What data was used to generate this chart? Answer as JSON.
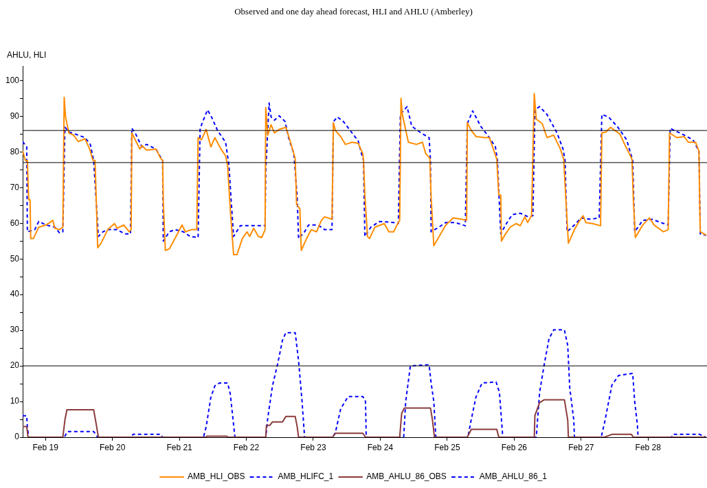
{
  "chart_data": {
    "type": "line",
    "title": "Observed and one day ahead forecast, HLI and AHLU (Amberley)",
    "ylabel": "AHLU, HLI",
    "xlim": [
      "--02-18T15:50",
      "--02-28T21:07"
    ],
    "xticks": [
      {
        "value": "--02-19",
        "label": "Feb 19"
      },
      {
        "value": "--02-20",
        "label": "Feb 20"
      },
      {
        "value": "--02-21",
        "label": "Feb 21"
      },
      {
        "value": "--02-22",
        "label": "Feb 22"
      },
      {
        "value": "--02-23",
        "label": "Feb 23"
      },
      {
        "value": "--02-24",
        "label": "Feb 24"
      },
      {
        "value": "--02-25",
        "label": "Feb 25"
      },
      {
        "value": "--02-26",
        "label": "Feb 26"
      },
      {
        "value": "--02-27",
        "label": "Feb 27"
      },
      {
        "value": "--02-28",
        "label": "Feb 28"
      }
    ],
    "ylim": [
      0,
      104
    ],
    "yticks": [
      0,
      {
        "value": 5,
        "label": null
      },
      10,
      {
        "value": 15,
        "label": null
      },
      20,
      {
        "value": 25,
        "label": null
      },
      30,
      {
        "value": 35,
        "label": null
      },
      40,
      {
        "value": 45,
        "label": null
      },
      50,
      {
        "value": 55,
        "label": null
      },
      60,
      {
        "value": 65,
        "label": null
      },
      70,
      {
        "value": 75,
        "label": null
      },
      80,
      {
        "value": 85,
        "label": null
      },
      90,
      {
        "value": 95,
        "label": null
      },
      100
    ],
    "grid": false,
    "legend": "bottom",
    "ref_lines": [
      {
        "axis": "y",
        "value": 86,
        "color": "#000000"
      },
      {
        "axis": "y",
        "value": 77,
        "color": "#000000"
      },
      {
        "axis": "y",
        "value": 20,
        "color": "#000000"
      }
    ],
    "series": [
      {
        "name": "AMB_HLI_OBS",
        "color": "#ff8c00",
        "line_style": "solid",
        "x": [
          "--02-18T15:50",
          "--02-18T16:48",
          "--02-18T17:31",
          "--02-18T17:46",
          "--02-18T18:00",
          "--02-18T18:29",
          "--02-18T18:43",
          "--02-18T19:41",
          "--02-18T21:36",
          "--02-19T00:14",
          "--02-19T02:38",
          "--02-19T03:22",
          "--02-19T05:02",
          "--02-19T06:14",
          "--02-19T06:43",
          "--02-19T07:12",
          "--02-19T08:24",
          "--02-19T10:05",
          "--02-19T11:46",
          "--02-19T14:10",
          "--02-19T15:50",
          "--02-19T17:02",
          "--02-19T17:46",
          "--02-19T18:14",
          "--02-19T18:43",
          "--02-19T19:55",
          "--02-19T22:19",
          "--02-20T00:43",
          "--02-20T01:41",
          "--02-20T04:05",
          "--02-20T06:00",
          "--02-20T06:43",
          "--02-20T06:58",
          "--02-20T08:10",
          "--02-20T09:50",
          "--02-20T10:34",
          "--02-20T12:14",
          "--02-20T15:36",
          "--02-20T17:17",
          "--02-20T18:00",
          "--02-20T18:14",
          "--02-20T18:58",
          "--02-20T20:24",
          "--02-20T22:48",
          "--02-21T00:58",
          "--02-21T02:10",
          "--02-21T04:19",
          "--02-21T06:14",
          "--02-21T06:43",
          "--02-21T07:55",
          "--02-21T09:36",
          "--02-21T11:17",
          "--02-21T12:43",
          "--02-21T14:53",
          "--02-21T16:34",
          "--02-21T17:17",
          "--02-21T18:14",
          "--02-21T19:26",
          "--02-21T20:38",
          "--02-21T22:34",
          "--02-22T00:14",
          "--02-22T01:12",
          "--02-22T02:38",
          "--02-22T04:19",
          "--02-22T05:31",
          "--02-22T06:43",
          "--02-22T06:58",
          "--02-22T07:41",
          "--02-22T08:53",
          "--02-22T10:05",
          "--02-22T11:46",
          "--02-22T14:10",
          "--02-22T15:50",
          "--02-22T17:31",
          "--02-22T18:00",
          "--02-22T19:12",
          "--02-22T19:41",
          "--02-22T21:36",
          "--02-22T23:17",
          "--02-23T01:12",
          "--02-23T02:53",
          "--02-23T04:05",
          "--02-23T06:43",
          "--02-23T07:12",
          "--02-23T07:55",
          "--02-23T09:50",
          "--02-23T11:31",
          "--02-23T13:55",
          "--02-23T16:05",
          "--02-23T17:46",
          "--02-23T18:00",
          "--02-23T18:29",
          "--02-23T19:26",
          "--02-23T20:10",
          "--02-23T22:05",
          "--02-24T01:26",
          "--02-24T03:07",
          "--02-24T04:48",
          "--02-24T06:29",
          "--02-24T06:58",
          "--02-24T07:26",
          "--02-24T07:55",
          "--02-24T10:05",
          "--02-24T12:58",
          "--02-24T15:07",
          "--02-24T16:19",
          "--02-24T17:46",
          "--02-24T18:14",
          "--02-24T19:12",
          "--02-24T21:07",
          "--02-24T23:31",
          "--02-25T02:10",
          "--02-25T05:17",
          "--02-25T06:58",
          "--02-25T07:12",
          "--02-25T08:38",
          "--02-25T10:19",
          "--02-25T13:26",
          "--02-25T15:07",
          "--02-25T16:48",
          "--02-25T17:46",
          "--02-25T18:29",
          "--02-25T19:12",
          "--02-25T19:26",
          "--02-25T20:53",
          "--02-25T22:34",
          "--02-26T00:43",
          "--02-26T02:10",
          "--02-26T03:50",
          "--02-26T04:48",
          "--02-26T06:14",
          "--02-26T07:12",
          "--02-26T07:55",
          "--02-26T10:05",
          "--02-26T11:46",
          "--02-26T14:10",
          "--02-26T16:34",
          "--02-26T17:46",
          "--02-26T18:29",
          "--02-26T19:26",
          "--02-26T21:36",
          "--02-26T23:02",
          "--02-27T00:43",
          "--02-27T01:41",
          "--02-27T04:05",
          "--02-27T06:58",
          "--02-27T07:26",
          "--02-27T08:53",
          "--02-27T10:34",
          "--02-27T13:55",
          "--02-27T15:36",
          "--02-27T17:17",
          "--02-27T18:14",
          "--02-27T18:43",
          "--02-27T19:26",
          "--02-27T22:05",
          "--02-28T00:29",
          "--02-28T02:10",
          "--02-28T05:31",
          "--02-28T07:12",
          "--02-28T07:41",
          "--02-28T10:19",
          "--02-28T12:58",
          "--02-28T14:24",
          "--02-28T17:02",
          "--02-28T18:14",
          "--02-28T18:29",
          "--02-28T18:43",
          "--02-28T20:53"
        ],
        "values": [
          80.3,
          77.6,
          77.6,
          71.5,
          66.6,
          66.6,
          55.7,
          55.7,
          58.9,
          59.5,
          60.8,
          58.6,
          58.2,
          58.9,
          95.3,
          89.8,
          85.3,
          84.7,
          82.9,
          83.7,
          80.8,
          77.6,
          77.6,
          66.0,
          53.1,
          54.4,
          58.2,
          59.9,
          58.6,
          59.5,
          57.6,
          58.2,
          85.3,
          83.4,
          80.8,
          81.8,
          80.5,
          80.8,
          78.2,
          77.6,
          66.0,
          52.4,
          52.8,
          56.3,
          59.5,
          57.6,
          58.2,
          58.2,
          84.0,
          83.4,
          86.3,
          81.4,
          84.0,
          80.8,
          78.9,
          76.3,
          64.0,
          51.2,
          51.2,
          55.7,
          57.6,
          56.3,
          58.6,
          56.3,
          56.0,
          58.2,
          92.4,
          84.7,
          87.6,
          85.3,
          86.3,
          86.9,
          82.7,
          78.2,
          65.3,
          64.0,
          52.4,
          55.7,
          58.2,
          57.6,
          60.8,
          61.8,
          61.1,
          88.2,
          86.0,
          84.3,
          82.1,
          82.7,
          82.4,
          79.5,
          77.6,
          67.9,
          56.3,
          55.7,
          58.9,
          59.9,
          57.6,
          57.6,
          60.2,
          60.8,
          95.0,
          90.5,
          82.7,
          82.1,
          82.7,
          79.5,
          78.2,
          67.3,
          53.7,
          56.3,
          59.5,
          61.5,
          61.1,
          60.8,
          88.2,
          86.0,
          84.3,
          84.0,
          84.0,
          80.2,
          77.9,
          67.9,
          67.9,
          55.0,
          57.0,
          58.9,
          59.9,
          59.3,
          61.8,
          60.2,
          62.1,
          96.3,
          89.2,
          87.9,
          84.0,
          84.7,
          80.8,
          77.9,
          67.3,
          54.4,
          58.2,
          60.2,
          62.1,
          60.2,
          59.9,
          59.3,
          85.3,
          85.6,
          86.9,
          85.0,
          82.1,
          79.5,
          77.9,
          66.6,
          56.0,
          59.5,
          61.5,
          59.5,
          57.6,
          58.2,
          85.3,
          84.0,
          84.3,
          82.7,
          82.7,
          80.2,
          66.0,
          57.6,
          56.6
        ]
      },
      {
        "name": "AMB_HLIFC_1",
        "color": "#0000ff",
        "line_style": "dashed",
        "x": [
          "--02-18T15:50",
          "--02-18T17:17",
          "--02-18T17:31",
          "--02-18T20:10",
          "--02-18T21:36",
          "--02-19T00:14",
          "--02-19T03:22",
          "--02-19T05:02",
          "--02-19T06:14",
          "--02-19T06:58",
          "--02-19T08:24",
          "--02-19T11:46",
          "--02-19T14:10",
          "--02-19T16:05",
          "--02-19T17:17",
          "--02-19T18:58",
          "--02-19T20:38",
          "--02-19T22:19",
          "--02-20T01:41",
          "--02-20T04:34",
          "--02-20T06:29",
          "--02-20T06:58",
          "--02-20T08:10",
          "--02-20T10:34",
          "--02-20T12:14",
          "--02-20T15:36",
          "--02-20T17:17",
          "--02-20T18:00",
          "--02-20T18:14",
          "--02-20T20:24",
          "--02-20T22:34",
          "--02-21T01:26",
          "--02-21T03:50",
          "--02-21T06:43",
          "--02-21T07:26",
          "--02-21T10:05",
          "--02-21T11:31",
          "--02-21T13:41",
          "--02-21T16:34",
          "--02-21T17:46",
          "--02-21T18:29",
          "--02-21T19:26",
          "--02-21T21:50",
          "--02-22T06:00",
          "--02-22T06:43",
          "--02-22T06:58",
          "--02-22T08:10",
          "--02-22T08:53",
          "--02-22T10:05",
          "--02-22T11:46",
          "--02-22T13:55",
          "--02-22T15:07",
          "--02-22T17:02",
          "--02-22T18:14",
          "--02-22T18:43",
          "--02-22T20:53",
          "--02-22T22:19",
          "--02-23T01:41",
          "--02-23T04:05",
          "--02-23T06:43",
          "--02-23T07:12",
          "--02-23T08:38",
          "--02-23T10:48",
          "--02-23T13:55",
          "--02-23T16:05",
          "--02-23T17:17",
          "--02-23T18:00",
          "--02-23T18:29",
          "--02-23T20:38",
          "--02-23T23:46",
          "--02-24T04:48",
          "--02-24T06:29",
          "--02-24T07:12",
          "--02-24T09:36",
          "--02-24T11:17",
          "--02-24T14:38",
          "--02-24T17:31",
          "--02-24T18:00",
          "--02-24T18:14",
          "--02-24T20:24",
          "--02-24T23:31",
          "--02-25T02:53",
          "--02-25T06:29",
          "--02-25T07:12",
          "--02-25T09:07",
          "--02-25T12:00",
          "--02-25T15:07",
          "--02-25T17:17",
          "--02-25T18:00",
          "--02-25T18:58",
          "--02-25T19:12",
          "--02-25T20:53",
          "--02-25T23:17",
          "--02-26T02:10",
          "--02-26T05:02",
          "--02-26T06:43",
          "--02-26T07:26",
          "--02-26T09:07",
          "--02-26T11:46",
          "--02-26T15:22",
          "--02-26T17:31",
          "--02-26T18:14",
          "--02-26T18:58",
          "--02-26T21:36",
          "--02-27T00:00",
          "--02-27T03:22",
          "--02-27T06:29",
          "--02-27T07:26",
          "--02-27T09:50",
          "--02-27T13:12",
          "--02-27T16:19",
          "--02-27T18:29",
          "--02-27T19:12",
          "--02-27T22:05",
          "--02-28T01:26",
          "--02-28T04:34",
          "--02-28T07:12",
          "--02-28T07:55",
          "--02-28T12:58",
          "--02-28T16:05",
          "--02-28T18:14",
          "--02-28T18:43",
          "--02-28T20:53"
        ],
        "values": [
          82.9,
          81.4,
          57.6,
          58.2,
          60.5,
          59.5,
          58.9,
          57.3,
          57.6,
          86.9,
          85.6,
          84.7,
          84.0,
          82.1,
          77.6,
          56.3,
          57.6,
          58.2,
          58.2,
          57.0,
          57.0,
          86.6,
          85.3,
          81.4,
          82.1,
          80.8,
          78.5,
          77.6,
          55.0,
          57.6,
          58.2,
          57.6,
          56.3,
          56.0,
          86.6,
          91.8,
          89.8,
          86.0,
          82.7,
          76.3,
          67.3,
          56.3,
          59.3,
          59.3,
          59.3,
          75.0,
          93.7,
          89.8,
          88.9,
          90.1,
          88.5,
          84.0,
          79.5,
          67.3,
          55.7,
          57.6,
          59.5,
          59.5,
          58.2,
          58.2,
          88.5,
          89.8,
          88.5,
          85.3,
          83.1,
          79.5,
          77.6,
          56.3,
          58.9,
          60.5,
          60.2,
          59.9,
          90.5,
          92.7,
          87.2,
          85.3,
          84.0,
          77.6,
          57.6,
          58.6,
          60.2,
          60.2,
          59.3,
          87.9,
          91.5,
          87.2,
          84.0,
          81.4,
          77.6,
          60.8,
          57.0,
          59.5,
          62.4,
          62.8,
          61.8,
          62.1,
          91.8,
          92.7,
          90.5,
          85.3,
          80.8,
          77.6,
          57.6,
          59.5,
          61.5,
          61.1,
          61.5,
          90.5,
          89.8,
          86.9,
          83.4,
          77.6,
          57.6,
          60.8,
          61.1,
          60.2,
          59.5,
          86.6,
          84.7,
          83.4,
          80.2,
          57.0,
          56.6
        ]
      },
      {
        "name": "AMB_AHLU_86_OBS",
        "color": "#8b3a3a",
        "line_style": "solid",
        "x": [
          "--02-18T15:50",
          "--02-18T17:17",
          "--02-18T17:46",
          "--02-19T06:14",
          "--02-19T06:58",
          "--02-19T07:41",
          "--02-19T17:17",
          "--02-19T18:14",
          "--02-19T18:58",
          "--02-21T09:36",
          "--02-21T09:50",
          "--02-21T17:02",
          "--02-21T17:17",
          "--02-22T06:58",
          "--02-22T07:12",
          "--02-22T08:24",
          "--02-22T09:22",
          "--02-22T12:58",
          "--02-22T14:10",
          "--02-22T17:31",
          "--02-22T18:14",
          "--02-22T18:43",
          "--02-23T06:58",
          "--02-23T07:55",
          "--02-23T17:46",
          "--02-23T18:43",
          "--02-24T06:58",
          "--02-24T07:41",
          "--02-24T08:38",
          "--02-24T18:00",
          "--02-24T18:43",
          "--02-24T19:26",
          "--02-25T07:12",
          "--02-25T08:38",
          "--02-25T17:46",
          "--02-25T18:29",
          "--02-26T07:12",
          "--02-26T07:26",
          "--02-26T09:07",
          "--02-26T10:48",
          "--02-26T18:00",
          "--02-26T19:12",
          "--02-26T19:26",
          "--02-27T08:24",
          "--02-27T11:02",
          "--02-27T18:00",
          "--02-27T18:43",
          "--02-28T20:53"
        ],
        "values": [
          3.0,
          3.0,
          0,
          0,
          4.8,
          7.7,
          7.7,
          3.5,
          0,
          0,
          0.3,
          0.3,
          0,
          0,
          3.3,
          3.3,
          4.3,
          4.3,
          5.8,
          5.8,
          2.9,
          0,
          0,
          1.1,
          1.1,
          0,
          0,
          6.7,
          8.2,
          8.2,
          4.8,
          0,
          0,
          2.2,
          2.2,
          0,
          0,
          6.1,
          9.7,
          10.5,
          10.5,
          4.8,
          0,
          0,
          0.8,
          0.8,
          0,
          0
        ]
      },
      {
        "name": "AMB_AHLU_86_1",
        "color": "#0000ff",
        "line_style": "dashed",
        "x": [
          "--02-18T15:50",
          "--02-18T17:17",
          "--02-18T17:31",
          "--02-18T18:00",
          "--02-19T06:43",
          "--02-19T07:55",
          "--02-19T17:17",
          "--02-19T18:43",
          "--02-20T06:29",
          "--02-20T07:26",
          "--02-20T17:17",
          "--02-20T18:00",
          "--02-21T08:38",
          "--02-21T09:36",
          "--02-21T11:17",
          "--02-21T12:43",
          "--02-21T14:24",
          "--02-21T17:17",
          "--02-21T18:14",
          "--02-21T19:26",
          "--02-21T19:55",
          "--02-22T06:58",
          "--02-22T07:41",
          "--02-22T09:22",
          "--02-22T11:17",
          "--02-22T12:58",
          "--02-22T14:10",
          "--02-22T17:31",
          "--02-22T18:43",
          "--02-22T19:55",
          "--02-22T20:53",
          "--02-23T06:58",
          "--02-23T07:55",
          "--02-23T09:50",
          "--02-23T12:29",
          "--02-23T17:46",
          "--02-23T18:43",
          "--02-23T18:58",
          "--02-24T08:24",
          "--02-24T09:07",
          "--02-24T10:48",
          "--02-24T17:31",
          "--02-24T18:14",
          "--02-24T19:12",
          "--02-24T19:55",
          "--02-25T07:26",
          "--02-25T08:24",
          "--02-25T10:19",
          "--02-25T12:29",
          "--02-25T17:31",
          "--02-25T18:43",
          "--02-25T19:55",
          "--02-26T07:55",
          "--02-26T09:07",
          "--02-26T10:48",
          "--02-26T12:29",
          "--02-26T14:10",
          "--02-26T18:00",
          "--02-26T19:12",
          "--02-26T19:55",
          "--02-26T21:22",
          "--02-26T21:36",
          "--02-27T07:12",
          "--02-27T08:24",
          "--02-27T11:02",
          "--02-27T13:26",
          "--02-27T18:29",
          "--02-27T19:12",
          "--02-27T20:10",
          "--02-27T20:24",
          "--02-28T08:24",
          "--02-28T08:53",
          "--02-28T18:29",
          "--02-28T20:38"
        ],
        "values": [
          6.0,
          6.0,
          2.9,
          0,
          0,
          1.6,
          1.6,
          0,
          0,
          0.8,
          0.8,
          0,
          0,
          2.9,
          11.2,
          14.4,
          15.2,
          15.2,
          12.2,
          3.5,
          0,
          0,
          5.4,
          14.4,
          20.8,
          27.2,
          29.3,
          29.3,
          21.5,
          10.6,
          0,
          0,
          1.3,
          8.0,
          11.4,
          11.4,
          10.0,
          0,
          0,
          10.0,
          20.0,
          20.3,
          15.2,
          10.0,
          0,
          0,
          4.1,
          11.3,
          15.2,
          15.5,
          12.6,
          0,
          0,
          12.6,
          20.5,
          27.6,
          30.1,
          30.1,
          25.7,
          13.9,
          4.8,
          0,
          0,
          4.1,
          14.6,
          17.3,
          17.9,
          10.0,
          3.5,
          0,
          0,
          0.8,
          0.8,
          0
        ]
      }
    ]
  }
}
